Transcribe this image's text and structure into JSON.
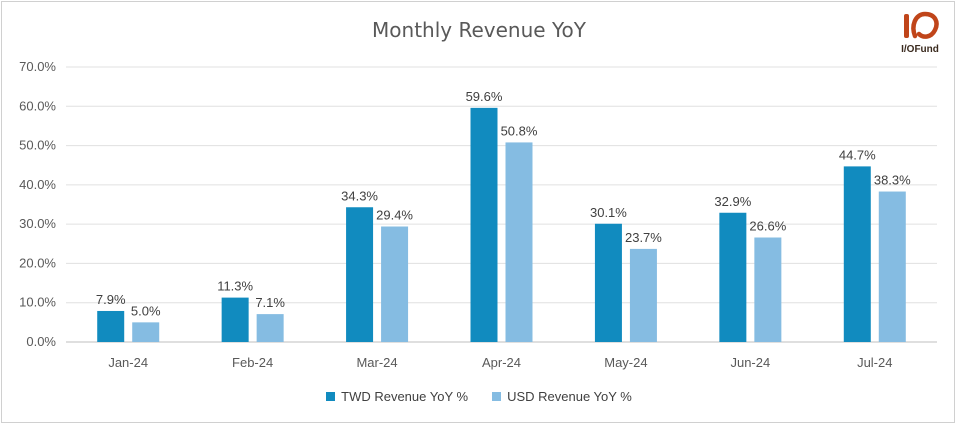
{
  "chart_data": {
    "type": "bar",
    "title": "Monthly Revenue YoY",
    "categories": [
      "Jan-24",
      "Feb-24",
      "Mar-24",
      "Apr-24",
      "May-24",
      "Jun-24",
      "Jul-24"
    ],
    "series": [
      {
        "name": "TWD Revenue YoY %",
        "color": "#118bbf",
        "values": [
          7.9,
          11.3,
          34.3,
          59.6,
          30.1,
          32.9,
          44.7
        ],
        "labels": [
          "7.9%",
          "11.3%",
          "34.3%",
          "59.6%",
          "30.1%",
          "32.9%",
          "44.7%"
        ]
      },
      {
        "name": "USD Revenue YoY %",
        "color": "#85bce2",
        "values": [
          5.0,
          7.1,
          29.4,
          50.8,
          23.7,
          26.6,
          38.3
        ],
        "labels": [
          "5.0%",
          "7.1%",
          "29.4%",
          "50.8%",
          "23.7%",
          "26.6%",
          "38.3%"
        ]
      }
    ],
    "yticks": [
      "0.0%",
      "10.0%",
      "20.0%",
      "30.0%",
      "40.0%",
      "50.0%",
      "60.0%",
      "70.0%"
    ],
    "ylim": [
      0,
      70
    ],
    "xlabel": "",
    "ylabel": "",
    "grid": true,
    "legend": "bottom"
  },
  "logo": {
    "text": "I/OFund",
    "icon": "io-logo-icon",
    "color": "#c0451a"
  }
}
